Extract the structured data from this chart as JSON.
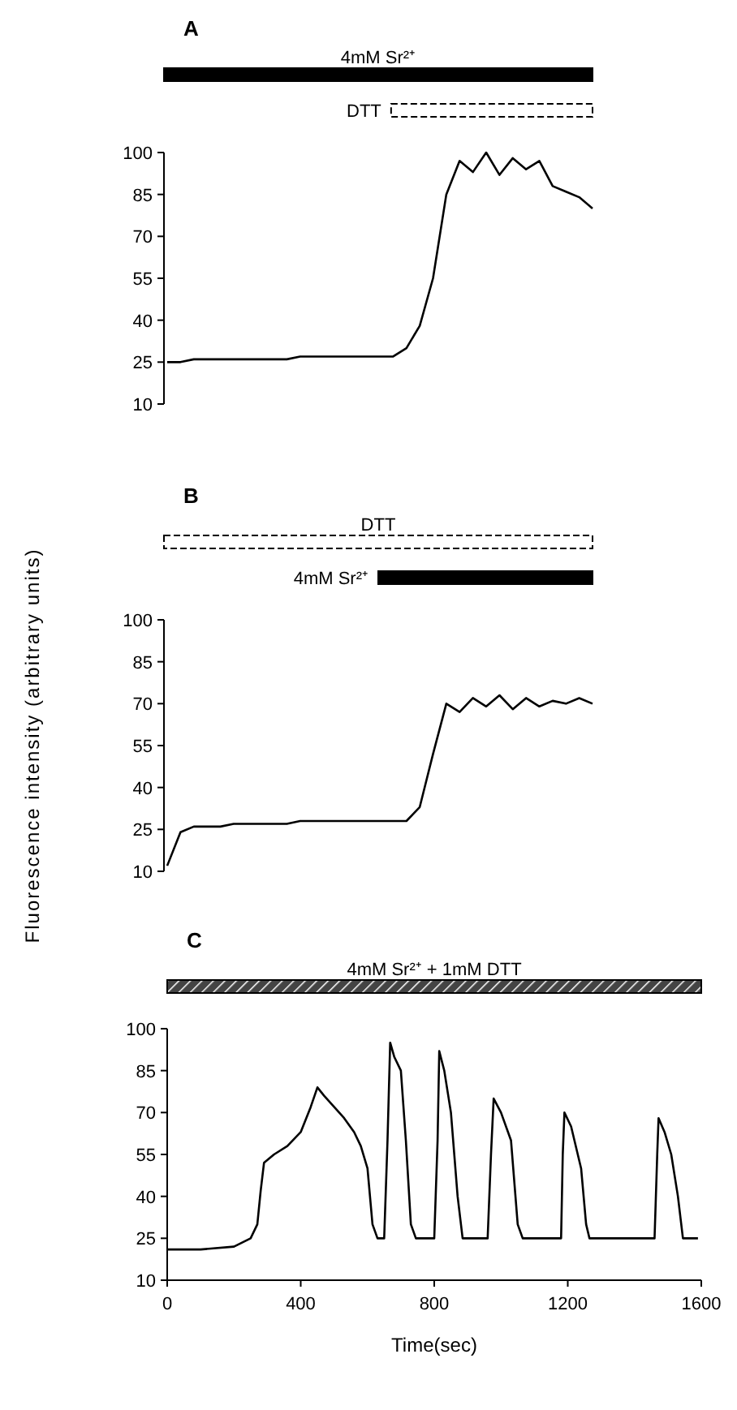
{
  "chart_data": [
    {
      "type": "line",
      "title": "A",
      "categories": [
        null,
        null,
        null,
        null,
        null,
        null,
        null,
        null,
        null,
        null,
        null,
        null,
        null,
        null,
        null,
        null,
        null,
        null,
        null,
        null,
        null,
        null,
        null,
        null,
        null,
        null,
        null,
        null,
        null,
        null,
        null,
        null,
        null
      ],
      "ylim": [
        10,
        100
      ],
      "yticks": [
        10,
        25,
        40,
        55,
        70,
        85,
        100
      ],
      "tick_labels": "y",
      "annotations": [
        "4mM Sr²⁺",
        "DTT"
      ],
      "series": [
        {
          "color": "#000000",
          "values": [
            25,
            25,
            26,
            26,
            26,
            26,
            26,
            26,
            26,
            26,
            27,
            27,
            27,
            27,
            27,
            27,
            27,
            27,
            30,
            38,
            55,
            85,
            97,
            93,
            100,
            92,
            98,
            94,
            97,
            88,
            86,
            84,
            80
          ]
        }
      ]
    },
    {
      "type": "line",
      "title": "B",
      "ylabel": "Fluorescence intensity (arbitrary units)",
      "categories": [
        null,
        null,
        null,
        null,
        null,
        null,
        null,
        null,
        null,
        null,
        null,
        null,
        null,
        null,
        null,
        null,
        null,
        null,
        null,
        null,
        null,
        null,
        null,
        null,
        null,
        null,
        null,
        null,
        null,
        null,
        null,
        null,
        null
      ],
      "ylim": [
        10,
        100
      ],
      "yticks": [
        10,
        25,
        40,
        55,
        70,
        85,
        100
      ],
      "tick_labels": "y",
      "annotations": [
        "DTT",
        "4mM Sr²⁺"
      ],
      "series": [
        {
          "color": "#000000",
          "values": [
            12,
            24,
            26,
            26,
            26,
            27,
            27,
            27,
            27,
            27,
            28,
            28,
            28,
            28,
            28,
            28,
            28,
            28,
            28,
            33,
            52,
            70,
            67,
            72,
            69,
            73,
            68,
            72,
            69,
            71,
            70,
            72,
            70
          ]
        }
      ]
    },
    {
      "type": "line",
      "title": "C",
      "xlabel": "Time(sec)",
      "xlim": [
        0,
        1600
      ],
      "xticks": [
        0,
        400,
        800,
        1200,
        1600
      ],
      "ylim": [
        10,
        100
      ],
      "yticks": [
        10,
        25,
        40,
        55,
        70,
        85,
        100
      ],
      "annotations": [
        "4mM Sr²⁺ + 1mM DTT"
      ],
      "series": [
        {
          "color": "#000000",
          "x": [
            0,
            100,
            200,
            250,
            270,
            280,
            290,
            320,
            360,
            400,
            430,
            450,
            470,
            500,
            530,
            560,
            580,
            600,
            615,
            630,
            650,
            660,
            668,
            680,
            700,
            715,
            730,
            745,
            800,
            810,
            815,
            830,
            850,
            870,
            885,
            960,
            970,
            978,
            1000,
            1030,
            1050,
            1065,
            1180,
            1185,
            1190,
            1210,
            1240,
            1255,
            1265,
            1460,
            1468,
            1472,
            1490,
            1510,
            1530,
            1545,
            1590
          ],
          "values": [
            21,
            21,
            22,
            25,
            30,
            42,
            52,
            55,
            58,
            63,
            72,
            79,
            76,
            72,
            68,
            63,
            58,
            50,
            30,
            25,
            25,
            60,
            95,
            90,
            85,
            60,
            30,
            25,
            25,
            60,
            92,
            85,
            70,
            40,
            25,
            25,
            55,
            75,
            70,
            60,
            30,
            25,
            25,
            55,
            70,
            65,
            50,
            30,
            25,
            25,
            55,
            68,
            63,
            55,
            40,
            25,
            25
          ]
        }
      ]
    }
  ]
}
